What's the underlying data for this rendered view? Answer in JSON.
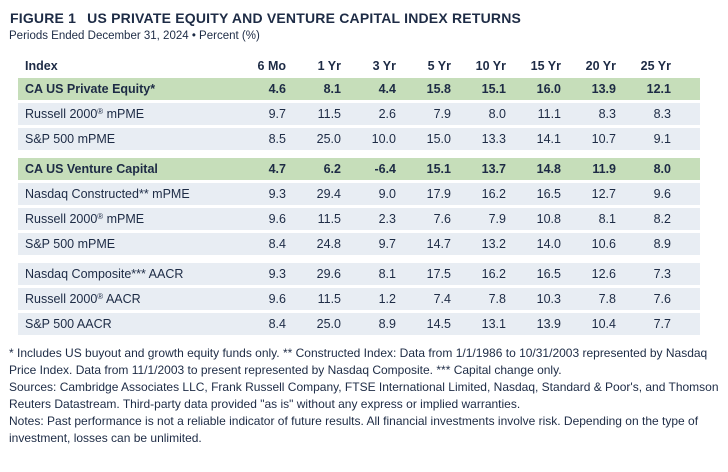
{
  "meta": {
    "figure_label": "FIGURE 1",
    "title": "US PRIVATE EQUITY AND VENTURE CAPITAL INDEX RETURNS",
    "subtitle": "Periods Ended December 31, 2024 • Percent (%)"
  },
  "chart_data": {
    "type": "table",
    "title": "US Private Equity and Venture Capital Index Returns",
    "subtitle": "Periods Ended December 31, 2024 • Percent (%)",
    "columns": [
      "Index",
      "6 Mo",
      "1 Yr",
      "3 Yr",
      "5 Yr",
      "10 Yr",
      "15 Yr",
      "20 Yr",
      "25 Yr"
    ],
    "rows": [
      {
        "label": "CA US Private Equity*",
        "highlight": true,
        "values": [
          "4.6",
          "8.1",
          "4.4",
          "15.8",
          "15.1",
          "16.0",
          "13.9",
          "12.1"
        ]
      },
      {
        "label": "Russell 2000® mPME",
        "highlight": false,
        "values": [
          "9.7",
          "11.5",
          "2.6",
          "7.9",
          "8.0",
          "11.1",
          "8.3",
          "8.3"
        ]
      },
      {
        "label": "S&P 500 mPME",
        "highlight": false,
        "values": [
          "8.5",
          "25.0",
          "10.0",
          "15.0",
          "13.3",
          "14.1",
          "10.7",
          "9.1"
        ]
      },
      {
        "label": "CA US Venture Capital",
        "highlight": true,
        "values": [
          "4.7",
          "6.2",
          "-6.4",
          "15.1",
          "13.7",
          "14.8",
          "11.9",
          "8.0"
        ]
      },
      {
        "label": "Nasdaq Constructed** mPME",
        "highlight": false,
        "values": [
          "9.3",
          "29.4",
          "9.0",
          "17.9",
          "16.2",
          "16.5",
          "12.7",
          "9.6"
        ]
      },
      {
        "label": "Russell 2000® mPME",
        "highlight": false,
        "values": [
          "9.6",
          "11.5",
          "2.3",
          "7.6",
          "7.9",
          "10.8",
          "8.1",
          "8.2"
        ]
      },
      {
        "label": "S&P 500 mPME",
        "highlight": false,
        "values": [
          "8.4",
          "24.8",
          "9.7",
          "14.7",
          "13.2",
          "14.0",
          "10.6",
          "8.9"
        ]
      },
      {
        "label": "Nasdaq Composite*** AACR",
        "highlight": false,
        "values": [
          "9.3",
          "29.6",
          "8.1",
          "17.5",
          "16.2",
          "16.5",
          "12.6",
          "7.3"
        ]
      },
      {
        "label": "Russell 2000® AACR",
        "highlight": false,
        "values": [
          "9.6",
          "11.5",
          "1.2",
          "7.4",
          "7.8",
          "10.3",
          "7.8",
          "7.6"
        ]
      },
      {
        "label": "S&P 500 AACR",
        "highlight": false,
        "values": [
          "8.4",
          "25.0",
          "8.9",
          "14.5",
          "13.1",
          "13.9",
          "10.4",
          "7.7"
        ]
      }
    ]
  },
  "footnotes": {
    "definitions": "* Includes US buyout and growth equity funds only. ** Constructed Index: Data from 1/1/1986 to 10/31/2003 represented by Nasdaq Price Index. Data from 11/1/2003 to present represented by Nasdaq Composite. *** Capital change only.",
    "sources": "Sources: Cambridge Associates LLC, Frank Russell Company, FTSE International Limited, Nasdaq, Standard & Poor's, and Thomson Reuters Datastream. Third-party data provided \"as is\" without any express or implied warranties.",
    "notes": "Notes: Past performance is not a reliable indicator of future results. All financial investments involve risk. Depending on the type of investment, losses can be unlimited."
  },
  "colors": {
    "highlight_row_bg": "#c6deba",
    "data_row_bg": "#e8edf3",
    "text": "#1d2b45",
    "background": "#ffffff"
  }
}
